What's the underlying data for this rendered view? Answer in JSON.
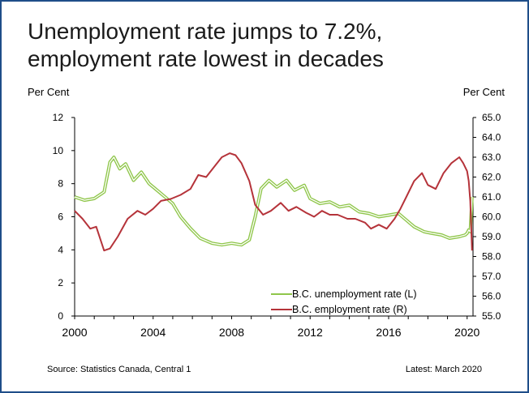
{
  "title_line1": "Unemployment rate jumps to 7.2%,",
  "title_line2": "employment rate lowest in decades",
  "source": "Source: Statistics Canada, Central 1",
  "latest": "Latest: March 2020",
  "colors": {
    "border": "#1f4e89",
    "unemployment": "#8fc64a",
    "employment": "#b5333a"
  },
  "chart_data": {
    "type": "line",
    "left_axis": {
      "label": "Per Cent",
      "ylim": [
        0,
        12
      ],
      "ticks": [
        "0",
        "2",
        "4",
        "6",
        "8",
        "10",
        "12"
      ]
    },
    "right_axis": {
      "label": "Per Cent",
      "ylim": [
        55.0,
        65.0
      ],
      "ticks": [
        "55.0",
        "56.0",
        "57.0",
        "58.0",
        "59.0",
        "60.0",
        "61.0",
        "62.0",
        "63.0",
        "64.0",
        "65.0"
      ]
    },
    "xlim": [
      2000.0,
      2020.3
    ],
    "x_ticks": [
      "2000",
      "2004",
      "2008",
      "2012",
      "2016",
      "2020"
    ],
    "grid": false,
    "legend_placement": "bottom-right",
    "series": [
      {
        "name": "B.C. unemployment rate (L)",
        "axis": "left",
        "points": [
          [
            2000.0,
            7.2
          ],
          [
            2000.5,
            7.0
          ],
          [
            2001.0,
            7.1
          ],
          [
            2001.5,
            7.5
          ],
          [
            2001.8,
            9.3
          ],
          [
            2002.0,
            9.6
          ],
          [
            2002.3,
            8.9
          ],
          [
            2002.6,
            9.2
          ],
          [
            2003.0,
            8.2
          ],
          [
            2003.4,
            8.7
          ],
          [
            2003.8,
            8.0
          ],
          [
            2004.2,
            7.6
          ],
          [
            2004.7,
            7.1
          ],
          [
            2005.0,
            6.8
          ],
          [
            2005.4,
            6.0
          ],
          [
            2005.9,
            5.3
          ],
          [
            2006.4,
            4.7
          ],
          [
            2007.0,
            4.4
          ],
          [
            2007.5,
            4.3
          ],
          [
            2008.0,
            4.4
          ],
          [
            2008.5,
            4.3
          ],
          [
            2008.9,
            4.6
          ],
          [
            2009.2,
            6.0
          ],
          [
            2009.5,
            7.7
          ],
          [
            2009.9,
            8.2
          ],
          [
            2010.3,
            7.8
          ],
          [
            2010.8,
            8.2
          ],
          [
            2011.2,
            7.6
          ],
          [
            2011.7,
            7.9
          ],
          [
            2012.0,
            7.1
          ],
          [
            2012.5,
            6.8
          ],
          [
            2013.0,
            6.9
          ],
          [
            2013.5,
            6.6
          ],
          [
            2014.0,
            6.7
          ],
          [
            2014.5,
            6.3
          ],
          [
            2015.0,
            6.2
          ],
          [
            2015.5,
            6.0
          ],
          [
            2016.0,
            6.1
          ],
          [
            2016.5,
            6.2
          ],
          [
            2016.9,
            5.8
          ],
          [
            2017.3,
            5.4
          ],
          [
            2017.8,
            5.1
          ],
          [
            2018.2,
            5.0
          ],
          [
            2018.7,
            4.9
          ],
          [
            2019.1,
            4.7
          ],
          [
            2019.6,
            4.8
          ],
          [
            2019.9,
            4.9
          ],
          [
            2020.0,
            5.0
          ],
          [
            2020.08,
            5.2
          ],
          [
            2020.16,
            5.1
          ],
          [
            2020.25,
            7.2
          ]
        ]
      },
      {
        "name": "B.C. employment rate (R)",
        "axis": "right",
        "points": [
          [
            2000.0,
            60.3
          ],
          [
            2000.4,
            59.9
          ],
          [
            2000.8,
            59.4
          ],
          [
            2001.1,
            59.5
          ],
          [
            2001.5,
            58.3
          ],
          [
            2001.8,
            58.4
          ],
          [
            2002.2,
            59.0
          ],
          [
            2002.7,
            59.9
          ],
          [
            2003.2,
            60.3
          ],
          [
            2003.6,
            60.1
          ],
          [
            2004.0,
            60.4
          ],
          [
            2004.4,
            60.8
          ],
          [
            2004.9,
            60.9
          ],
          [
            2005.4,
            61.1
          ],
          [
            2005.9,
            61.4
          ],
          [
            2006.3,
            62.1
          ],
          [
            2006.7,
            62.0
          ],
          [
            2007.1,
            62.5
          ],
          [
            2007.5,
            63.0
          ],
          [
            2007.9,
            63.2
          ],
          [
            2008.2,
            63.1
          ],
          [
            2008.5,
            62.7
          ],
          [
            2008.9,
            61.8
          ],
          [
            2009.2,
            60.6
          ],
          [
            2009.6,
            60.1
          ],
          [
            2010.0,
            60.3
          ],
          [
            2010.5,
            60.7
          ],
          [
            2010.9,
            60.3
          ],
          [
            2011.3,
            60.5
          ],
          [
            2011.8,
            60.2
          ],
          [
            2012.2,
            60.0
          ],
          [
            2012.6,
            60.3
          ],
          [
            2013.0,
            60.1
          ],
          [
            2013.4,
            60.1
          ],
          [
            2013.9,
            59.9
          ],
          [
            2014.3,
            59.9
          ],
          [
            2014.8,
            59.7
          ],
          [
            2015.1,
            59.4
          ],
          [
            2015.5,
            59.6
          ],
          [
            2015.9,
            59.4
          ],
          [
            2016.3,
            59.9
          ],
          [
            2016.6,
            60.4
          ],
          [
            2016.9,
            61.0
          ],
          [
            2017.3,
            61.8
          ],
          [
            2017.7,
            62.2
          ],
          [
            2018.0,
            61.6
          ],
          [
            2018.4,
            61.4
          ],
          [
            2018.8,
            62.2
          ],
          [
            2019.2,
            62.7
          ],
          [
            2019.6,
            63.0
          ],
          [
            2019.8,
            62.7
          ],
          [
            2020.0,
            62.3
          ],
          [
            2020.08,
            61.8
          ],
          [
            2020.16,
            60.8
          ],
          [
            2020.25,
            58.3
          ]
        ]
      }
    ]
  }
}
